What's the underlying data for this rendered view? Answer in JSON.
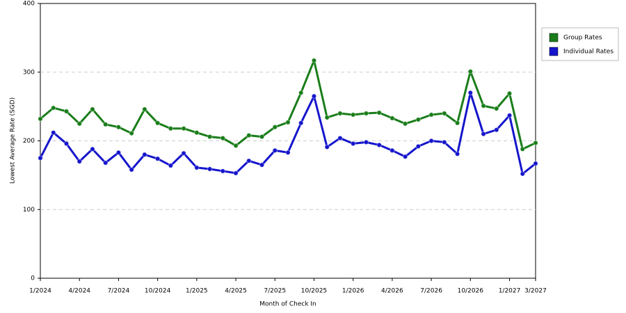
{
  "chart_data": {
    "type": "line",
    "y_label": "Lowest Average Rate (SGD)",
    "x_label": "Month of Check In",
    "categories": [
      "1/2024",
      null,
      null,
      "4/2024",
      null,
      null,
      "7/2024",
      null,
      null,
      "10/2024",
      null,
      null,
      "1/2025",
      null,
      null,
      "4/2025",
      null,
      null,
      "7/2025",
      null,
      null,
      "10/2025",
      null,
      null,
      "1/2026",
      null,
      null,
      "4/2026",
      null,
      null,
      "7/2026",
      null,
      null,
      "10/2026",
      null,
      null,
      "1/2027",
      null,
      "3/2027"
    ],
    "series": [
      {
        "name": "Group Rates",
        "color": "#1a7d1a",
        "values": [
          232,
          248,
          243,
          225,
          246,
          224,
          220,
          211,
          246,
          226,
          218,
          218,
          212,
          206,
          204,
          193,
          208,
          206,
          220,
          227,
          270,
          317,
          234,
          240,
          238,
          240,
          241,
          233,
          225,
          231,
          238,
          240,
          226,
          301,
          251,
          247,
          269,
          188,
          197
        ]
      },
      {
        "name": "Individual Rates",
        "color": "#1515cc",
        "values": [
          175,
          212,
          196,
          170,
          188,
          168,
          183,
          158,
          180,
          174,
          164,
          182,
          161,
          159,
          156,
          153,
          171,
          165,
          186,
          183,
          226,
          265,
          191,
          204,
          196,
          198,
          194,
          186,
          177,
          192,
          200,
          198,
          181,
          270,
          210,
          216,
          237,
          152,
          167
        ]
      }
    ],
    "ylim": [
      0,
      400
    ],
    "yticks": [
      0,
      100,
      200,
      300,
      400
    ],
    "grid": true,
    "legend": "right"
  }
}
